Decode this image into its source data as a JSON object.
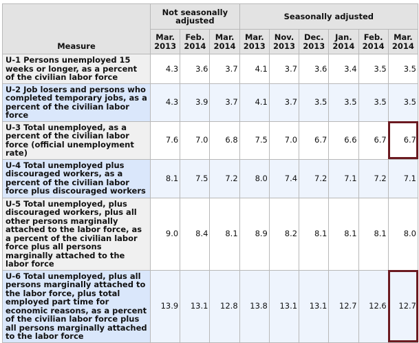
{
  "table": {
    "measure_header": "Measure",
    "group_headers": [
      "Not seasonally adjusted",
      "Seasonally adjusted"
    ],
    "columns": [
      [
        "Mar.",
        "2013"
      ],
      [
        "Feb.",
        "2014"
      ],
      [
        "Mar.",
        "2014"
      ],
      [
        "Mar.",
        "2013"
      ],
      [
        "Nov.",
        "2013"
      ],
      [
        "Dec.",
        "2013"
      ],
      [
        "Jan.",
        "2014"
      ],
      [
        "Feb.",
        "2014"
      ],
      [
        "Mar.",
        "2014"
      ]
    ],
    "rows": [
      {
        "label": "U-1 Persons unemployed 15 weeks or longer, as a percent of the civilian labor force",
        "values": [
          "4.3",
          "3.6",
          "3.7",
          "4.1",
          "3.7",
          "3.6",
          "3.4",
          "3.5",
          "3.5"
        ]
      },
      {
        "label": "U-2 Job losers and persons who completed temporary jobs, as a percent of the civilian labor force",
        "values": [
          "4.3",
          "3.9",
          "3.7",
          "4.1",
          "3.7",
          "3.5",
          "3.5",
          "3.5",
          "3.5"
        ]
      },
      {
        "label": "U-3 Total unemployed, as a percent of the civilian labor force (official unemployment rate)",
        "values": [
          "7.6",
          "7.0",
          "6.8",
          "7.5",
          "7.0",
          "6.7",
          "6.6",
          "6.7",
          "6.7"
        ]
      },
      {
        "label": "U-4 Total unemployed plus discouraged workers, as a percent of the civilian labor force plus discouraged workers",
        "values": [
          "8.1",
          "7.5",
          "7.2",
          "8.0",
          "7.4",
          "7.2",
          "7.1",
          "7.2",
          "7.1"
        ]
      },
      {
        "label": "U-5 Total unemployed, plus discouraged workers, plus all other persons marginally attached to the labor force, as a percent of the civilian labor force plus all persons marginally attached to the labor force",
        "values": [
          "9.0",
          "8.4",
          "8.1",
          "8.9",
          "8.2",
          "8.1",
          "8.1",
          "8.1",
          "8.0"
        ]
      },
      {
        "label": "U-6 Total unemployed, plus all persons marginally attached to the labor force, plus total employed part time for economic reasons, as a percent of the civilian labor force plus all persons marginally attached to the labor force",
        "values": [
          "13.9",
          "13.1",
          "12.8",
          "13.8",
          "13.1",
          "13.1",
          "12.7",
          "12.6",
          "12.7"
        ]
      }
    ],
    "highlight_color": "#6b1a20"
  }
}
